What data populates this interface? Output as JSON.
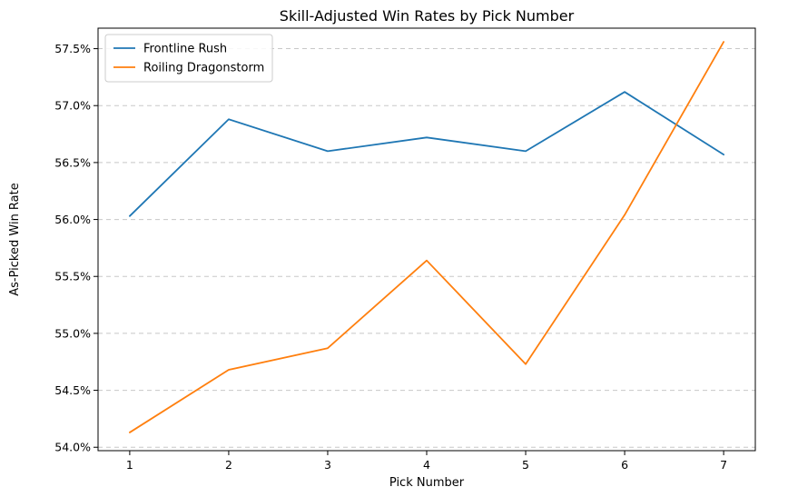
{
  "chart_data": {
    "type": "line",
    "title": "Skill-Adjusted Win Rates by Pick Number",
    "xlabel": "Pick Number",
    "ylabel": "As-Picked Win Rate",
    "x": [
      1,
      2,
      3,
      4,
      5,
      6,
      7
    ],
    "x_tick_labels": [
      "1",
      "2",
      "3",
      "4",
      "5",
      "6",
      "7"
    ],
    "ylim": [
      53.97,
      57.68
    ],
    "y_ticks": [
      54.0,
      54.5,
      55.0,
      55.5,
      56.0,
      56.5,
      57.0,
      57.5
    ],
    "y_tick_labels": [
      "54.0%",
      "54.5%",
      "55.0%",
      "55.5%",
      "56.0%",
      "56.5%",
      "57.0%",
      "57.5%"
    ],
    "grid": "horizontal dashed",
    "legend_position": "top-left",
    "series": [
      {
        "name": "Frontline Rush",
        "color": "#1f77b4",
        "values": [
          56.03,
          56.88,
          56.6,
          56.72,
          56.6,
          57.12,
          56.57
        ]
      },
      {
        "name": "Roiling Dragonstorm",
        "color": "#ff7f0e",
        "values": [
          54.13,
          54.68,
          54.87,
          55.64,
          54.73,
          56.04,
          57.56
        ]
      }
    ]
  }
}
